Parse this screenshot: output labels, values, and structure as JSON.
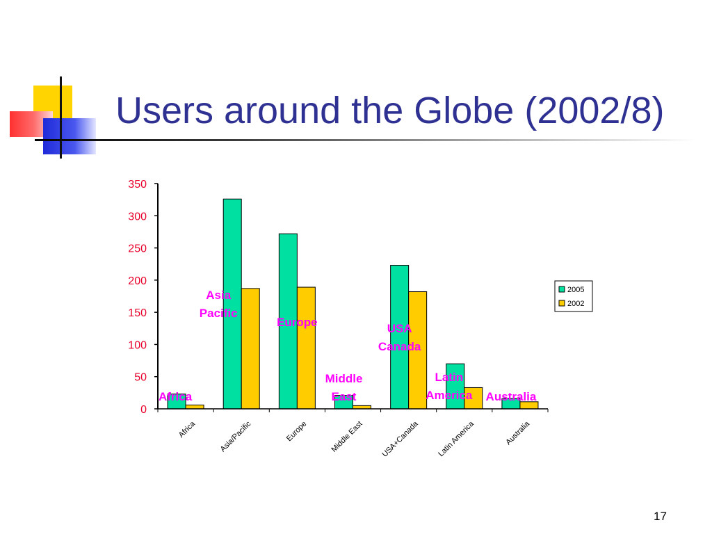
{
  "slide": {
    "title": "Users around the Globe (2002/8)",
    "page_number": "17"
  },
  "colors": {
    "title": "#2e3192",
    "tick_label": "#e8002a",
    "series_2005": "#00e0a0",
    "series_2002": "#ffcc00",
    "region_label": "#ff00ff"
  },
  "chart_data": {
    "type": "bar",
    "categories": [
      "Africa",
      "Asia/Pacific",
      "Europe",
      "Middle East",
      "USA+Canada",
      "Latin America",
      "Australia"
    ],
    "series": [
      {
        "name": "2005",
        "values": [
          23,
          326,
          272,
          21,
          223,
          70,
          16
        ]
      },
      {
        "name": "2002",
        "values": [
          6,
          187,
          189,
          5,
          182,
          33,
          11
        ]
      }
    ],
    "ylim": [
      0,
      350
    ],
    "yticks": [
      0,
      50,
      100,
      150,
      200,
      250,
      300,
      350
    ],
    "legend_position": "right",
    "grid": false,
    "annotations": [
      {
        "lines": [
          "Africa"
        ],
        "category": 0
      },
      {
        "lines": [
          "Asia",
          "Pacific"
        ],
        "category": 1
      },
      {
        "lines": [
          "Europe"
        ],
        "category": 2
      },
      {
        "lines": [
          "Middle",
          "East"
        ],
        "category": 3
      },
      {
        "lines": [
          "USA",
          "Canada"
        ],
        "category": 4
      },
      {
        "lines": [
          "Latin",
          "America"
        ],
        "category": 5
      },
      {
        "lines": [
          "Australia"
        ],
        "category": 6
      }
    ]
  }
}
